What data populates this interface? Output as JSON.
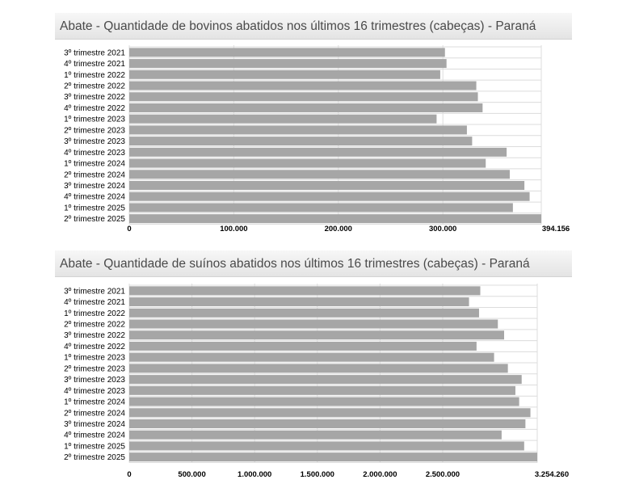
{
  "chart_data": [
    {
      "type": "bar",
      "orientation": "horizontal",
      "title": "Abate - Quantidade de bovinos abatidos nos últimos 16 trimestres (cabeças) - Paraná",
      "categories": [
        "3º trimestre 2021",
        "4º trimestre 2021",
        "1º trimestre 2022",
        "2º trimestre 2022",
        "3º trimestre 2022",
        "4º trimestre 2022",
        "1º trimestre 2023",
        "2º trimestre 2023",
        "3º trimestre 2023",
        "4º trimestre 2023",
        "1º trimestre 2024",
        "2º trimestre 2024",
        "3º trimestre 2024",
        "4º trimestre 2024",
        "1º trimestre 2025",
        "2º trimestre 2025"
      ],
      "values": [
        302000,
        303500,
        297500,
        332000,
        333500,
        338000,
        294000,
        323000,
        328000,
        361000,
        341000,
        364000,
        378000,
        383000,
        367000,
        394156
      ],
      "xlim": [
        0,
        394156
      ],
      "ticks": [
        0,
        100000,
        200000,
        300000,
        394156
      ],
      "tick_labels": [
        "0",
        "100.000",
        "200.000",
        "300.000",
        "394.156"
      ],
      "grid": true
    },
    {
      "type": "bar",
      "orientation": "horizontal",
      "title": "Abate - Quantidade de suínos abatidos nos últimos 16 trimestres (cabeças) - Paraná",
      "categories": [
        "3º trimestre 2021",
        "4º trimestre 2021",
        "1º trimestre 2022",
        "2º trimestre 2022",
        "3º trimestre 2022",
        "4º trimestre 2022",
        "1º trimestre 2023",
        "2º trimestre 2023",
        "3º trimestre 2023",
        "4º trimestre 2023",
        "1º trimestre 2024",
        "2º trimestre 2024",
        "3º trimestre 2024",
        "4º trimestre 2024",
        "1º trimestre 2025",
        "2º trimestre 2025"
      ],
      "values": [
        2800000,
        2710000,
        2790000,
        2940000,
        2990000,
        2770000,
        2910000,
        3020000,
        3130000,
        3080000,
        3110000,
        3200000,
        3160000,
        2970000,
        3150000,
        3254260
      ],
      "xlim": [
        0,
        3254260
      ],
      "ticks": [
        0,
        500000,
        1000000,
        1500000,
        2000000,
        2500000,
        3254260
      ],
      "tick_labels": [
        "0",
        "500.000",
        "1.000.000",
        "1.500.000",
        "2.000.000",
        "2.500.000",
        "3.254.260"
      ],
      "grid": true
    }
  ]
}
